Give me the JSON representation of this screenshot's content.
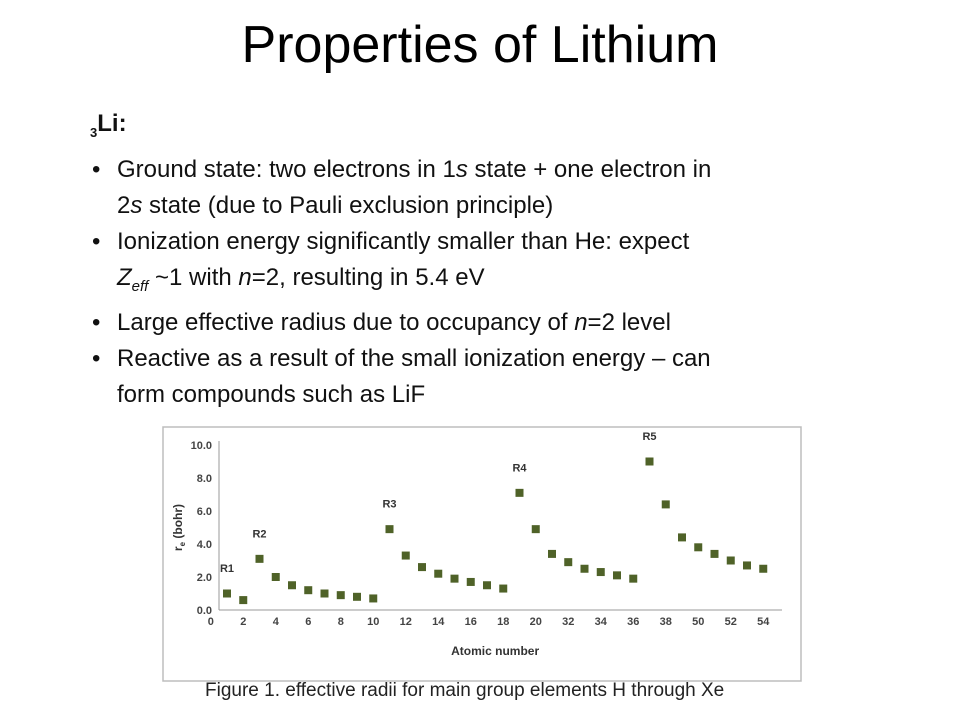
{
  "slide": {
    "title": "Properties of Lithium",
    "element": {
      "sub": "3",
      "symbol": "Li",
      "colon": ":"
    },
    "bullets": {
      "b1": {
        "t1": "Ground state:  two electrons in 1",
        "i1": "s",
        "t2": " state + one electron in",
        "t3": "2",
        "i2": "s",
        "t4": " state (due to Pauli exclusion principle)"
      },
      "b2": {
        "t1": "Ionization energy significantly smaller than He:  expect",
        "z": "Z",
        "zsub": "eff",
        "t2": " ~1 with ",
        "n": "n",
        "t3": "=2, resulting in 5.4 eV"
      },
      "b3": {
        "t1": "Large effective radius due to occupancy of ",
        "n": "n",
        "t2": "=2 level"
      },
      "b4": {
        "t1": "Reactive as a result of the small ionization energy – can",
        "t2": "form compounds such as LiF"
      }
    },
    "caption": "Figure 1. effective radii for main group elements H through Xe"
  },
  "chart_data": {
    "type": "scatter",
    "title": "",
    "xlabel": "Atomic number",
    "ylabel_main": "r",
    "ylabel_sub": "e",
    "ylabel_rest": " (bohr)",
    "ylim": [
      0,
      10
    ],
    "yticks": [
      "0.0",
      "2.0",
      "4.0",
      "6.0",
      "8.0",
      "10.0"
    ],
    "xtick_labels": [
      "0",
      "2",
      "4",
      "6",
      "8",
      "10",
      "12",
      "14",
      "16",
      "18",
      "20",
      "32",
      "34",
      "36",
      "38",
      "50",
      "52",
      "54"
    ],
    "marker_color": "#4f6228",
    "points": [
      {
        "x": "1",
        "y": 1.0
      },
      {
        "x": "2",
        "y": 0.6
      },
      {
        "x": "3",
        "y": 3.1
      },
      {
        "x": "4",
        "y": 2.0
      },
      {
        "x": "5",
        "y": 1.5
      },
      {
        "x": "6",
        "y": 1.2
      },
      {
        "x": "7",
        "y": 1.0
      },
      {
        "x": "8",
        "y": 0.9
      },
      {
        "x": "9",
        "y": 0.8
      },
      {
        "x": "10",
        "y": 0.7
      },
      {
        "x": "11",
        "y": 4.9
      },
      {
        "x": "12",
        "y": 3.3
      },
      {
        "x": "13",
        "y": 2.6
      },
      {
        "x": "14",
        "y": 2.2
      },
      {
        "x": "15",
        "y": 1.9
      },
      {
        "x": "16",
        "y": 1.7
      },
      {
        "x": "17",
        "y": 1.5
      },
      {
        "x": "18",
        "y": 1.3
      },
      {
        "x": "19",
        "y": 7.1
      },
      {
        "x": "20",
        "y": 4.9
      },
      {
        "x": "31",
        "y": 3.4
      },
      {
        "x": "32",
        "y": 2.9
      },
      {
        "x": "33",
        "y": 2.5
      },
      {
        "x": "34",
        "y": 2.3
      },
      {
        "x": "35",
        "y": 2.1
      },
      {
        "x": "36",
        "y": 1.9
      },
      {
        "x": "37",
        "y": 9.0
      },
      {
        "x": "38",
        "y": 6.4
      },
      {
        "x": "49",
        "y": 4.4
      },
      {
        "x": "50",
        "y": 3.8
      },
      {
        "x": "51",
        "y": 3.4
      },
      {
        "x": "52",
        "y": 3.0
      },
      {
        "x": "53",
        "y": 2.7
      },
      {
        "x": "54",
        "y": 2.5
      }
    ],
    "row_labels": [
      {
        "text": "R1",
        "x": "1",
        "y": 2.3
      },
      {
        "text": "R2",
        "x": "3",
        "y": 4.4
      },
      {
        "text": "R3",
        "x": "11",
        "y": 6.2
      },
      {
        "text": "R4",
        "x": "19",
        "y": 8.4
      },
      {
        "text": "R5",
        "x": "37",
        "y": 10.3
      }
    ]
  }
}
